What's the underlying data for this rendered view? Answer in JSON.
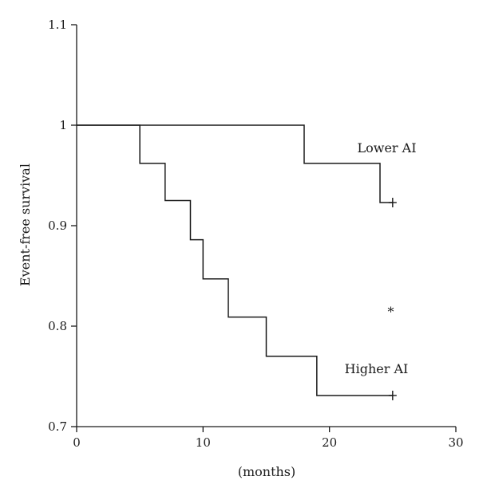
{
  "chart_data": {
    "type": "line",
    "xlabel": "(months)",
    "ylabel": "Event-free survival",
    "xlim": [
      0,
      30
    ],
    "ylim": [
      0.7,
      1.1
    ],
    "x_ticks": [
      0,
      10,
      20,
      30
    ],
    "x_tick_labels": [
      "0",
      "10",
      "20",
      "30"
    ],
    "y_ticks": [
      0.7,
      0.8,
      0.9,
      1.0,
      1.1
    ],
    "y_tick_labels": [
      "0.7",
      "0.8",
      "0.9",
      "1",
      "1.1"
    ],
    "grid": false,
    "step": true,
    "series": [
      {
        "name": "Lower AI",
        "x": [
          0,
          18,
          24,
          25
        ],
        "y": [
          1.0,
          0.962,
          0.923,
          0.923
        ],
        "censored": [
          {
            "x": 25,
            "y": 0.923
          }
        ]
      },
      {
        "name": "Higher AI",
        "x": [
          0,
          5,
          7,
          9,
          10,
          12,
          15,
          19,
          25
        ],
        "y": [
          1.0,
          0.962,
          0.925,
          0.886,
          0.847,
          0.809,
          0.77,
          0.731,
          0.731
        ],
        "censored": [
          {
            "x": 25,
            "y": 0.731
          }
        ]
      }
    ],
    "annotations": [
      {
        "text": "Lower AI",
        "x": 22.2,
        "y": 0.973
      },
      {
        "text": "Higher AI",
        "x": 21.2,
        "y": 0.753
      },
      {
        "text": "*",
        "x": 24.6,
        "y": 0.81
      }
    ]
  }
}
